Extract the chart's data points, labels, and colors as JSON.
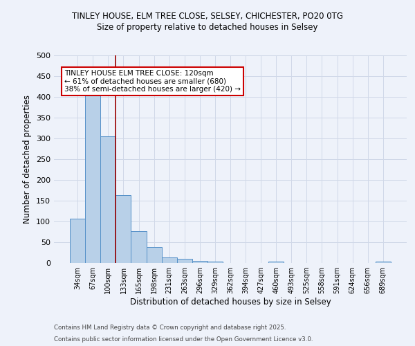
{
  "title1": "TINLEY HOUSE, ELM TREE CLOSE, SELSEY, CHICHESTER, PO20 0TG",
  "title2": "Size of property relative to detached houses in Selsey",
  "xlabel": "Distribution of detached houses by size in Selsey",
  "ylabel": "Number of detached properties",
  "categories": [
    "34sqm",
    "67sqm",
    "100sqm",
    "133sqm",
    "165sqm",
    "198sqm",
    "231sqm",
    "263sqm",
    "296sqm",
    "329sqm",
    "362sqm",
    "394sqm",
    "427sqm",
    "460sqm",
    "493sqm",
    "525sqm",
    "558sqm",
    "591sqm",
    "624sqm",
    "656sqm",
    "689sqm"
  ],
  "values": [
    107,
    403,
    305,
    163,
    76,
    38,
    13,
    10,
    5,
    3,
    0,
    0,
    0,
    3,
    0,
    0,
    0,
    0,
    0,
    0,
    3
  ],
  "bar_color": "#b8d0e8",
  "bar_edge_color": "#5590c8",
  "grid_color": "#d0d8e8",
  "bg_color": "#eef2fa",
  "vline_color": "#990000",
  "annotation_text": "TINLEY HOUSE ELM TREE CLOSE: 120sqm\n← 61% of detached houses are smaller (680)\n38% of semi-detached houses are larger (420) →",
  "annotation_box_facecolor": "#ffffff",
  "annotation_box_edgecolor": "#cc0000",
  "footnote1": "Contains HM Land Registry data © Crown copyright and database right 2025.",
  "footnote2": "Contains public sector information licensed under the Open Government Licence v3.0.",
  "ylim": [
    0,
    500
  ],
  "yticks": [
    0,
    50,
    100,
    150,
    200,
    250,
    300,
    350,
    400,
    450,
    500
  ]
}
